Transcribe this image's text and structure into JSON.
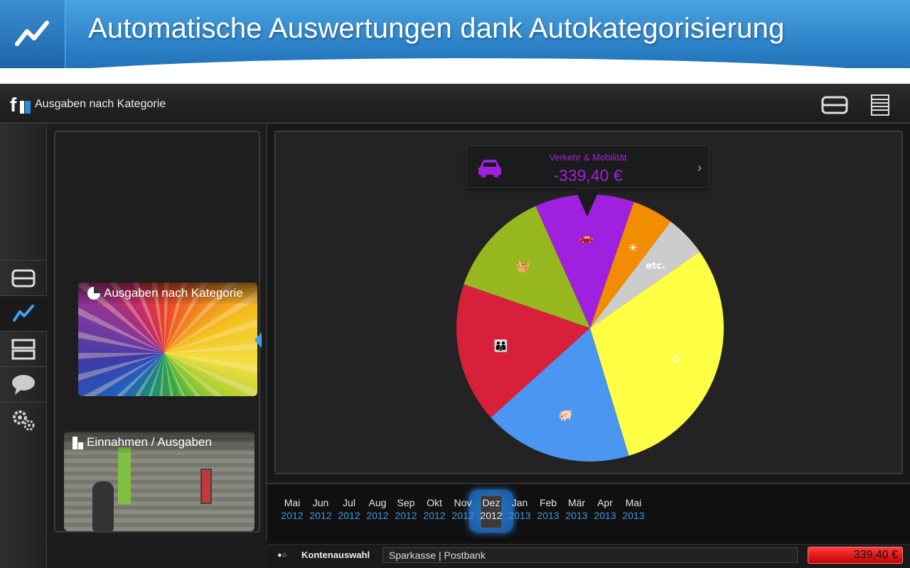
{
  "banner": {
    "title": "Automatische Auswertungen dank Autokategorisierung",
    "icon": "chart-line-icon"
  },
  "topbar": {
    "title": "Ausgaben nach Kategorie",
    "logo_icon": "fi-logo-icon",
    "buttons": [
      "single-view-icon",
      "list-view-icon"
    ]
  },
  "sidebar": {
    "items": [
      {
        "icon": "accounts-icon",
        "active": false
      },
      {
        "icon": "chart-line-icon",
        "active": true
      },
      {
        "icon": "split-view-icon",
        "active": false
      },
      {
        "icon": "speech-bubble-icon",
        "active": false
      },
      {
        "icon": "gears-icon",
        "active": false
      }
    ]
  },
  "cards": [
    {
      "label": "Ausgaben nach Kategorie",
      "icon": "pie-icon"
    },
    {
      "label": "Einnahmen / Ausgaben",
      "icon": "bar-icon"
    }
  ],
  "tooltip": {
    "category": "Verkehr & Mobilität",
    "value": "-339,40 €",
    "icon": "car-icon",
    "color": "#a020e0"
  },
  "chart_data": {
    "type": "pie",
    "series": [
      {
        "name": "Verkehr & Mobilität",
        "color": "#a020e0",
        "value": 12,
        "icon": "car-icon"
      },
      {
        "name": "",
        "color": "#f28c00",
        "value": 5,
        "icon": "sun-icon"
      },
      {
        "name": "",
        "color": "#cccccc",
        "value": 5,
        "label": "etc."
      },
      {
        "name": "",
        "color": "#ffff44",
        "value": 30,
        "icon": "house-icon"
      },
      {
        "name": "",
        "color": "#4a96f0",
        "value": 18,
        "icon": "piggy-bank-icon"
      },
      {
        "name": "",
        "color": "#d9203a",
        "value": 17,
        "icon": "family-icon"
      },
      {
        "name": "",
        "color": "#96b81e",
        "value": 13,
        "icon": "basket-icon"
      }
    ],
    "legend": "none"
  },
  "timeline": {
    "months": [
      {
        "m": "Mai",
        "y": "2012"
      },
      {
        "m": "Jun",
        "y": "2012"
      },
      {
        "m": "Jul",
        "y": "2012"
      },
      {
        "m": "Aug",
        "y": "2012"
      },
      {
        "m": "Sep",
        "y": "2012"
      },
      {
        "m": "Okt",
        "y": "2012"
      },
      {
        "m": "Nov",
        "y": "2012"
      },
      {
        "m": "Dez",
        "y": "2012"
      },
      {
        "m": "Jan",
        "y": "2013"
      },
      {
        "m": "Feb",
        "y": "2013"
      },
      {
        "m": "Mär",
        "y": "2013"
      },
      {
        "m": "Apr",
        "y": "2013"
      },
      {
        "m": "Mai",
        "y": "2013"
      }
    ],
    "selected_index": 7
  },
  "statusbar": {
    "dots": "●○",
    "account_label": "Kontenauswahl",
    "accounts": "Sparkasse | Postbank",
    "balance": "339,40 €",
    "balance_color": "#d40000"
  }
}
